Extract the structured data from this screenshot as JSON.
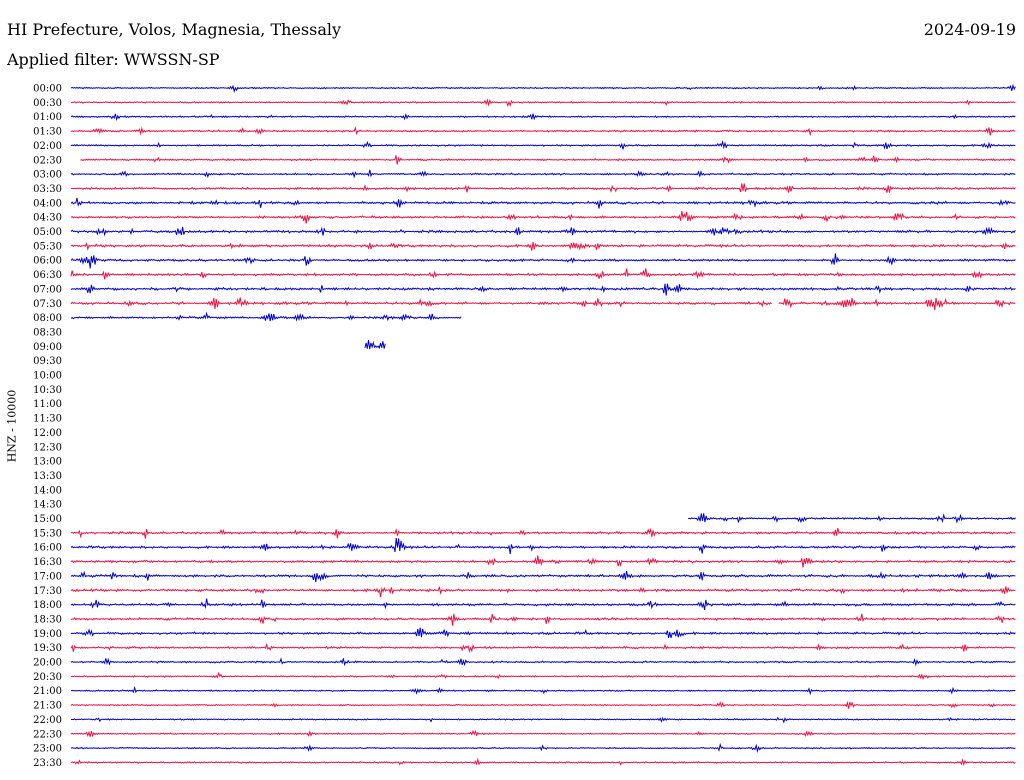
{
  "header": {
    "title": "HI Prefecture, Volos, Magnesia, Thessaly",
    "date": "2024-09-19",
    "filter": "Applied filter: WWSSN-SP"
  },
  "chart_data": {
    "type": "helicorder",
    "ylabel": "HNZ - 10000",
    "colors": [
      "#0000cc",
      "#ee1144"
    ],
    "rows": [
      {
        "label": "00:00",
        "segments": [
          [
            0,
            1
          ]
        ],
        "level": 0.35
      },
      {
        "label": "00:30",
        "segments": [
          [
            0,
            1
          ]
        ],
        "level": 0.35
      },
      {
        "label": "01:00",
        "segments": [
          [
            0,
            1
          ]
        ],
        "level": 0.45
      },
      {
        "label": "01:30",
        "segments": [
          [
            0,
            1
          ]
        ],
        "level": 0.55
      },
      {
        "label": "02:00",
        "segments": [
          [
            0,
            1
          ]
        ],
        "level": 0.5
      },
      {
        "label": "02:30",
        "segments": [
          [
            0.01,
            1
          ]
        ],
        "level": 0.55
      },
      {
        "label": "03:00",
        "segments": [
          [
            0,
            1
          ]
        ],
        "level": 0.6
      },
      {
        "label": "03:30",
        "segments": [
          [
            0,
            1
          ]
        ],
        "level": 0.8
      },
      {
        "label": "04:00",
        "segments": [
          [
            0,
            1
          ]
        ],
        "level": 0.95
      },
      {
        "label": "04:30",
        "segments": [
          [
            0,
            1
          ]
        ],
        "level": 0.9
      },
      {
        "label": "05:00",
        "segments": [
          [
            0,
            1
          ]
        ],
        "level": 1.0
      },
      {
        "label": "05:30",
        "segments": [
          [
            0,
            1
          ]
        ],
        "level": 0.95
      },
      {
        "label": "06:00",
        "segments": [
          [
            0,
            1
          ]
        ],
        "level": 0.85
      },
      {
        "label": "06:30",
        "segments": [
          [
            0,
            1
          ]
        ],
        "level": 0.9
      },
      {
        "label": "07:00",
        "segments": [
          [
            0,
            1
          ]
        ],
        "level": 1.0
      },
      {
        "label": "07:30",
        "segments": [
          [
            0,
            0.742
          ],
          [
            0.749,
            1
          ]
        ],
        "level": 0.95
      },
      {
        "label": "08:00",
        "segments": [
          [
            0,
            0.413
          ]
        ],
        "level": 0.8
      },
      {
        "label": "08:30",
        "segments": [],
        "level": 0
      },
      {
        "label": "09:00",
        "segments": [
          [
            0.311,
            0.333
          ]
        ],
        "level": 0.3
      },
      {
        "label": "09:30",
        "segments": [],
        "level": 0
      },
      {
        "label": "10:00",
        "segments": [],
        "level": 0
      },
      {
        "label": "10:30",
        "segments": [],
        "level": 0
      },
      {
        "label": "11:00",
        "segments": [],
        "level": 0
      },
      {
        "label": "11:30",
        "segments": [],
        "level": 0
      },
      {
        "label": "12:00",
        "segments": [],
        "level": 0
      },
      {
        "label": "12:30",
        "segments": [],
        "level": 0
      },
      {
        "label": "13:00",
        "segments": [],
        "level": 0
      },
      {
        "label": "13:30",
        "segments": [],
        "level": 0
      },
      {
        "label": "14:00",
        "segments": [],
        "level": 0
      },
      {
        "label": "14:30",
        "segments": [],
        "level": 0
      },
      {
        "label": "15:00",
        "segments": [
          [
            0.653,
            1
          ]
        ],
        "level": 0.7
      },
      {
        "label": "15:30",
        "segments": [
          [
            0,
            1
          ]
        ],
        "level": 0.85
      },
      {
        "label": "16:00",
        "segments": [
          [
            0,
            1
          ]
        ],
        "level": 0.9
      },
      {
        "label": "16:30",
        "segments": [
          [
            0,
            1
          ]
        ],
        "level": 0.9
      },
      {
        "label": "17:00",
        "segments": [
          [
            0,
            1
          ]
        ],
        "level": 1.0
      },
      {
        "label": "17:30",
        "segments": [
          [
            0,
            1
          ]
        ],
        "level": 0.95
      },
      {
        "label": "18:00",
        "segments": [
          [
            0,
            1
          ]
        ],
        "level": 0.95
      },
      {
        "label": "18:30",
        "segments": [
          [
            0,
            1
          ]
        ],
        "level": 0.9
      },
      {
        "label": "19:00",
        "segments": [
          [
            0,
            1
          ]
        ],
        "level": 0.85
      },
      {
        "label": "19:30",
        "segments": [
          [
            0,
            1
          ]
        ],
        "level": 0.7
      },
      {
        "label": "20:00",
        "segments": [
          [
            0,
            1
          ]
        ],
        "level": 0.55
      },
      {
        "label": "20:30",
        "segments": [
          [
            0,
            1
          ]
        ],
        "level": 0.35
      },
      {
        "label": "21:00",
        "segments": [
          [
            0,
            1
          ]
        ],
        "level": 0.4
      },
      {
        "label": "21:30",
        "segments": [
          [
            0,
            1
          ]
        ],
        "level": 0.3
      },
      {
        "label": "22:00",
        "segments": [
          [
            0,
            1
          ]
        ],
        "level": 0.3
      },
      {
        "label": "22:30",
        "segments": [
          [
            0,
            1
          ]
        ],
        "level": 0.3
      },
      {
        "label": "23:00",
        "segments": [
          [
            0,
            1
          ]
        ],
        "level": 0.35
      },
      {
        "label": "23:30",
        "segments": [
          [
            0,
            1
          ]
        ],
        "level": 0.35
      }
    ]
  }
}
